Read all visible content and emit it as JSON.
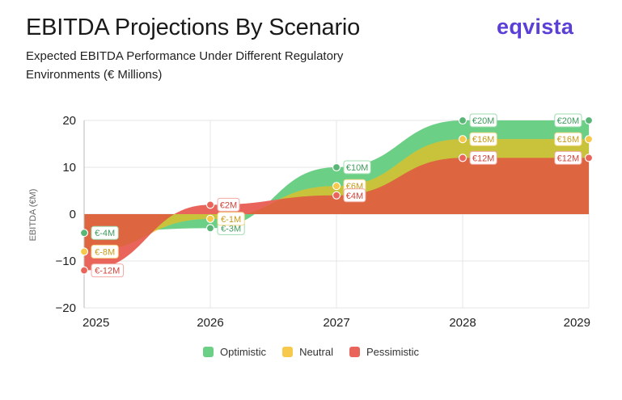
{
  "header": {
    "title": "EBITDA Projections By Scenario",
    "subtitle": "Expected EBITDA Performance Under Different Regulatory Environments (€ Millions)",
    "logo": "eqvista"
  },
  "colors": {
    "optimistic": "#6ccf86",
    "optimistic_line": "#5ab676",
    "neutral": "#f6c84c",
    "pessimistic": "#e9645a",
    "overlap_on": "#c8c33a",
    "overlap_op": "#dd6540",
    "logo": "#5b3fd6"
  },
  "chart_data": {
    "type": "area",
    "title": "EBITDA Projections By Scenario",
    "subtitle": "Expected EBITDA Performance Under Different Regulatory Environments (€ Millions)",
    "xlabel": "",
    "ylabel": "EBITDA (€M)",
    "x": [
      "2025",
      "2026",
      "2027",
      "2028",
      "2029"
    ],
    "ylim": [
      -20,
      20
    ],
    "yticks": [
      "20",
      "10",
      "0",
      "−10",
      "−20"
    ],
    "ytick_values": [
      20,
      10,
      0,
      -10,
      -20
    ],
    "legend_position": "bottom",
    "series": [
      {
        "name": "Optimistic",
        "key": "optimistic",
        "values": [
          -4,
          -3,
          10,
          20,
          20
        ],
        "labels": [
          "€-4M",
          "€-3M",
          "€10M",
          "€20M",
          "€20M"
        ]
      },
      {
        "name": "Neutral",
        "key": "neutral",
        "values": [
          -8,
          -1,
          6,
          16,
          16
        ],
        "labels": [
          "€-8M",
          "€-1M",
          "€6M",
          "€16M",
          "€16M"
        ]
      },
      {
        "name": "Pessimistic",
        "key": "pessimistic",
        "values": [
          -12,
          2,
          4,
          12,
          12
        ],
        "labels": [
          "€-12M",
          "€2M",
          "€4M",
          "€12M",
          "€12M"
        ]
      }
    ]
  }
}
